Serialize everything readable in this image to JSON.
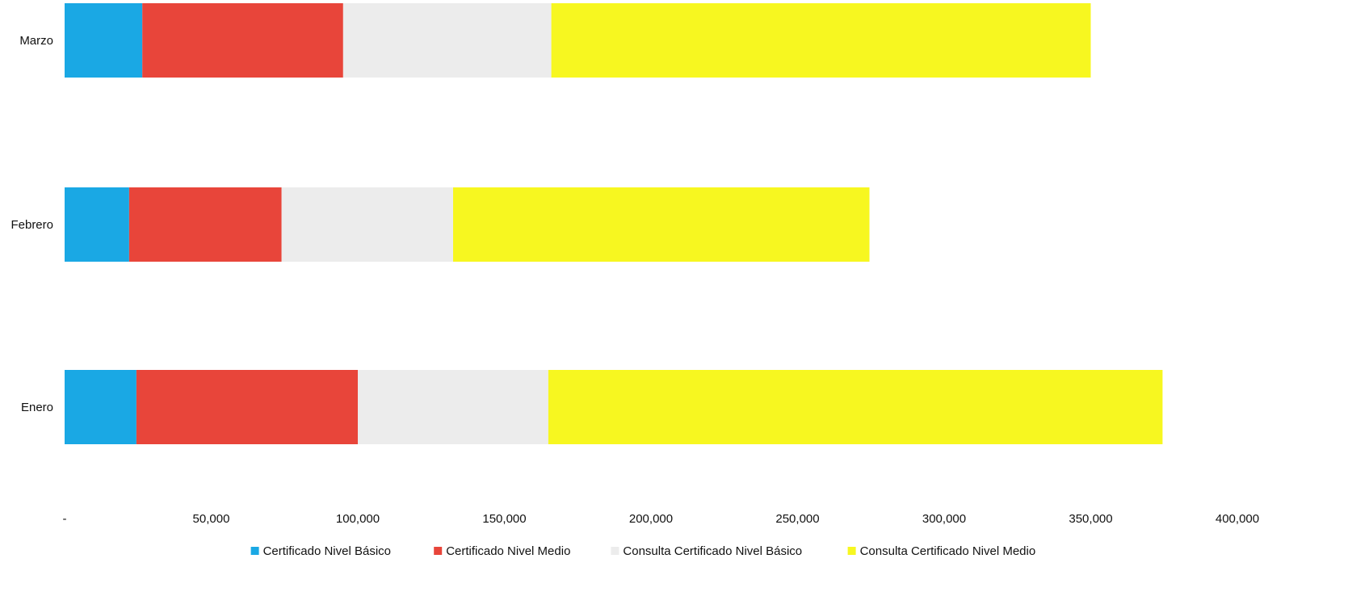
{
  "chart_data": {
    "type": "bar",
    "orientation": "horizontal",
    "stacked": true,
    "title": "",
    "xlabel": "",
    "ylabel": "",
    "categories": [
      "Marzo",
      "Febrero",
      "Enero"
    ],
    "series": [
      {
        "name": "Certificado Nivel Básico",
        "color": "#1aa8e4",
        "values": [
          26500,
          22000,
          24500
        ]
      },
      {
        "name": "Certificado Nivel Medio",
        "color": "#e8453a",
        "values": [
          68500,
          52000,
          75500
        ]
      },
      {
        "name": "Consulta Certificado Nivel Básico",
        "color": "#ececec",
        "values": [
          71000,
          58500,
          65000
        ]
      },
      {
        "name": "Consulta Certificado Nivel Medio",
        "color": "#f7f720",
        "values": [
          184000,
          142000,
          209500
        ]
      }
    ],
    "xlim": [
      0,
      400000
    ],
    "xticks": [
      0,
      50000,
      100000,
      150000,
      200000,
      250000,
      300000,
      350000,
      400000
    ],
    "xtick_labels": [
      "-",
      "50,000",
      "100,000",
      "150,000",
      "200,000",
      "250,000",
      "300,000",
      "350,000",
      "400,000"
    ],
    "grid": false,
    "legend_position": "bottom"
  }
}
